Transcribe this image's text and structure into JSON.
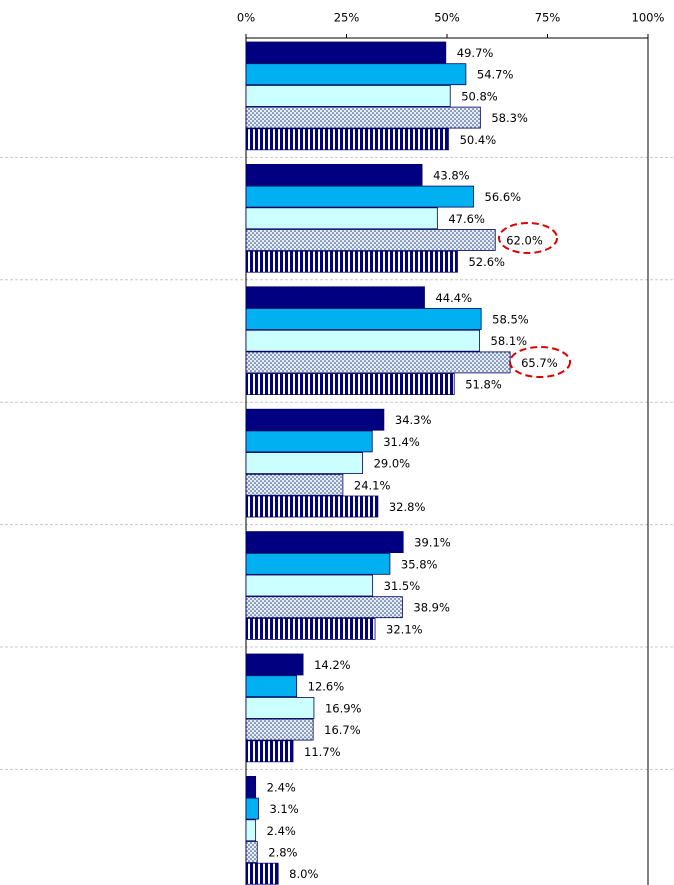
{
  "chart_data": {
    "type": "bar",
    "orientation": "horizontal",
    "categories": [
      null,
      null,
      null,
      null,
      null,
      null,
      null
    ],
    "xlim": [
      0,
      100
    ],
    "xticks": [
      {
        "value": 0,
        "label": "0%"
      },
      {
        "value": 25,
        "label": "25%"
      },
      {
        "value": 50,
        "label": "50%"
      },
      {
        "value": 75,
        "label": "75%"
      },
      {
        "value": 100,
        "label": "100%"
      }
    ],
    "grid": false,
    "series": [
      {
        "color": "#000080",
        "pattern": "solid",
        "values": [
          49.7,
          43.8,
          44.4,
          34.3,
          39.1,
          14.2,
          2.4
        ],
        "value_labels": [
          "49.7%",
          "43.8%",
          "44.4%",
          "34.3%",
          "39.1%",
          "14.2%",
          "2.4%"
        ]
      },
      {
        "color": "#00b0f0",
        "pattern": "solid",
        "values": [
          54.7,
          56.6,
          58.5,
          31.4,
          35.8,
          12.6,
          3.1
        ],
        "value_labels": [
          "54.7%",
          "56.6%",
          "58.5%",
          "31.4%",
          "35.8%",
          "12.6%",
          "3.1%"
        ]
      },
      {
        "color": "#ccffff",
        "pattern": "solid",
        "values": [
          50.8,
          47.6,
          58.1,
          29.0,
          31.5,
          16.9,
          2.4
        ],
        "value_labels": [
          "50.8%",
          "47.6%",
          "58.1%",
          "29.0%",
          "31.5%",
          "16.9%",
          "2.4%"
        ]
      },
      {
        "color": "#1f3f7f",
        "pattern": "dots",
        "values": [
          58.3,
          62.0,
          65.7,
          24.1,
          38.9,
          16.7,
          2.8
        ],
        "value_labels": [
          "58.3%",
          "62.0%",
          "65.7%",
          "24.1%",
          "38.9%",
          "16.7%",
          "2.8%"
        ]
      },
      {
        "color": "#000080",
        "pattern": "stripes",
        "values": [
          50.4,
          52.6,
          51.8,
          32.8,
          32.1,
          11.7,
          8.0
        ],
        "value_labels": [
          "50.4%",
          "52.6%",
          "51.8%",
          "32.8%",
          "32.1%",
          "11.7%",
          "8.0%"
        ]
      }
    ]
  }
}
